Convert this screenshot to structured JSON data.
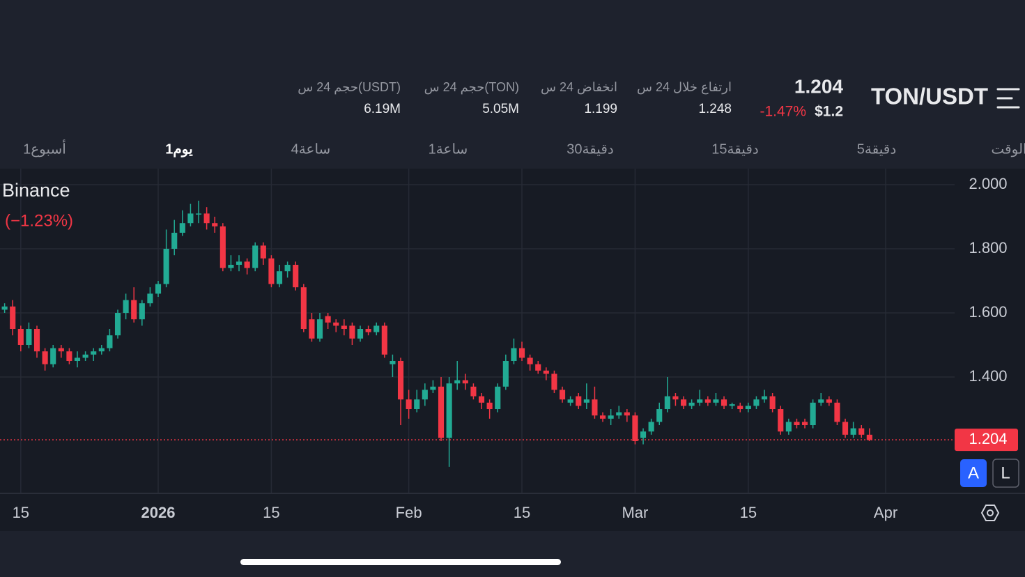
{
  "header": {
    "symbol": "TON/USDT",
    "price": "1.204",
    "change": "-1.47%",
    "usd_price": "$1.2",
    "stats": [
      {
        "label": "ارتفاع خلال 24 س",
        "value": "1.248"
      },
      {
        "label": "انخفاض 24 س",
        "value": "1.199"
      },
      {
        "label": "حجم 24 س(TON)",
        "value": "5.05M"
      },
      {
        "label": "حجم 24 س(USDT)",
        "value": "6.19M"
      }
    ]
  },
  "intervals": {
    "items": [
      "الوقت",
      "5دقيقة",
      "15دقيقة",
      "30دقيقة",
      "1ساعة",
      "4ساعة",
      "1يوم",
      "1أسبوع"
    ],
    "active": 6
  },
  "buttons": [
    "A",
    "L"
  ],
  "chart_data": {
    "type": "candlestick",
    "exchange": "Binance",
    "change_label": "(−1.23%)",
    "up_color": "#22ab94",
    "down_color": "#f23645",
    "grid": true,
    "x": [
      -19,
      -18,
      -17,
      -16,
      -15,
      -14,
      -13,
      -12,
      -11,
      -10,
      -9,
      -8,
      -7,
      -6,
      -5,
      -4,
      -3,
      -2,
      -1,
      0,
      1,
      2,
      3,
      4,
      5,
      6,
      7,
      8,
      9,
      10,
      11,
      12,
      13,
      14,
      15,
      16,
      17,
      18,
      19,
      20,
      21,
      22,
      23,
      24,
      25,
      26,
      27,
      28,
      29,
      30,
      31,
      32,
      33,
      34,
      35,
      36,
      37,
      38,
      39,
      40,
      41,
      42,
      43,
      44,
      45,
      46,
      47,
      48,
      49,
      50,
      51,
      52,
      53,
      54,
      55,
      56,
      57,
      58,
      59,
      60,
      61,
      62,
      63,
      64,
      65,
      66,
      67,
      68,
      69,
      70,
      71,
      72,
      73,
      74,
      75,
      76,
      77,
      78,
      79,
      80,
      81,
      82,
      83,
      84,
      85,
      86,
      87,
      88
    ],
    "open": [
      1.61,
      1.62,
      1.55,
      1.5,
      1.55,
      1.48,
      1.44,
      1.49,
      1.48,
      1.45,
      1.46,
      1.47,
      1.48,
      1.49,
      1.53,
      1.6,
      1.64,
      1.58,
      1.63,
      1.66,
      1.69,
      1.8,
      1.85,
      1.88,
      1.91,
      1.91,
      1.88,
      1.87,
      1.74,
      1.75,
      1.76,
      1.74,
      1.81,
      1.77,
      1.69,
      1.73,
      1.75,
      1.68,
      1.58,
      1.52,
      1.59,
      1.57,
      1.56,
      1.56,
      1.52,
      1.55,
      1.54,
      1.56,
      1.44,
      1.45,
      1.33,
      1.3,
      1.33,
      1.36,
      1.37,
      1.21,
      1.38,
      1.39,
      1.37,
      1.34,
      1.32,
      1.3,
      1.37,
      1.45,
      1.49,
      1.46,
      1.44,
      1.42,
      1.41,
      1.36,
      1.32,
      1.34,
      1.32,
      1.33,
      1.28,
      1.27,
      1.28,
      1.29,
      1.28,
      1.21,
      1.23,
      1.26,
      1.3,
      1.34,
      1.33,
      1.31,
      1.32,
      1.33,
      1.32,
      1.33,
      1.31,
      1.31,
      1.3,
      1.31,
      1.33,
      1.34,
      1.3,
      1.23,
      1.26,
      1.26,
      1.25,
      1.32,
      1.33,
      1.32,
      1.26,
      1.22,
      1.24,
      1.22
    ],
    "high": [
      1.63,
      1.64,
      1.56,
      1.57,
      1.56,
      1.49,
      1.5,
      1.5,
      1.49,
      1.48,
      1.48,
      1.49,
      1.5,
      1.55,
      1.61,
      1.66,
      1.68,
      1.64,
      1.68,
      1.7,
      1.86,
      1.89,
      1.92,
      1.94,
      1.95,
      1.93,
      1.9,
      1.88,
      1.78,
      1.78,
      1.77,
      1.82,
      1.82,
      1.78,
      1.75,
      1.76,
      1.76,
      1.69,
      1.6,
      1.6,
      1.6,
      1.58,
      1.58,
      1.57,
      1.56,
      1.56,
      1.57,
      1.57,
      1.47,
      1.46,
      1.36,
      1.36,
      1.38,
      1.39,
      1.4,
      1.4,
      1.45,
      1.41,
      1.38,
      1.35,
      1.33,
      1.38,
      1.47,
      1.52,
      1.51,
      1.47,
      1.45,
      1.43,
      1.42,
      1.37,
      1.34,
      1.35,
      1.38,
      1.37,
      1.29,
      1.3,
      1.31,
      1.3,
      1.29,
      1.24,
      1.27,
      1.32,
      1.4,
      1.35,
      1.34,
      1.33,
      1.36,
      1.34,
      1.35,
      1.34,
      1.32,
      1.32,
      1.32,
      1.34,
      1.36,
      1.35,
      1.31,
      1.27,
      1.27,
      1.27,
      1.33,
      1.35,
      1.34,
      1.33,
      1.27,
      1.26,
      1.25,
      1.24
    ],
    "low": [
      1.6,
      1.53,
      1.48,
      1.49,
      1.46,
      1.42,
      1.43,
      1.46,
      1.44,
      1.43,
      1.45,
      1.45,
      1.47,
      1.48,
      1.52,
      1.58,
      1.57,
      1.56,
      1.62,
      1.65,
      1.68,
      1.78,
      1.84,
      1.87,
      1.88,
      1.86,
      1.85,
      1.73,
      1.73,
      1.73,
      1.72,
      1.73,
      1.75,
      1.68,
      1.68,
      1.71,
      1.67,
      1.54,
      1.51,
      1.51,
      1.55,
      1.54,
      1.53,
      1.5,
      1.51,
      1.53,
      1.53,
      1.46,
      1.4,
      1.25,
      1.27,
      1.29,
      1.31,
      1.35,
      1.2,
      1.12,
      1.36,
      1.36,
      1.33,
      1.3,
      1.27,
      1.29,
      1.36,
      1.44,
      1.45,
      1.42,
      1.41,
      1.39,
      1.35,
      1.32,
      1.31,
      1.3,
      1.3,
      1.27,
      1.26,
      1.25,
      1.27,
      1.26,
      1.19,
      1.19,
      1.22,
      1.25,
      1.29,
      1.31,
      1.3,
      1.3,
      1.31,
      1.31,
      1.31,
      1.3,
      1.3,
      1.29,
      1.29,
      1.3,
      1.32,
      1.29,
      1.22,
      1.22,
      1.24,
      1.24,
      1.24,
      1.31,
      1.31,
      1.25,
      1.21,
      1.21,
      1.21,
      1.2
    ],
    "close": [
      1.62,
      1.55,
      1.5,
      1.55,
      1.48,
      1.44,
      1.49,
      1.48,
      1.45,
      1.46,
      1.47,
      1.48,
      1.49,
      1.53,
      1.6,
      1.64,
      1.58,
      1.63,
      1.66,
      1.69,
      1.8,
      1.85,
      1.88,
      1.91,
      1.91,
      1.88,
      1.87,
      1.74,
      1.75,
      1.76,
      1.74,
      1.81,
      1.77,
      1.69,
      1.73,
      1.75,
      1.68,
      1.55,
      1.52,
      1.58,
      1.57,
      1.56,
      1.55,
      1.52,
      1.55,
      1.54,
      1.56,
      1.47,
      1.45,
      1.33,
      1.3,
      1.33,
      1.36,
      1.37,
      1.21,
      1.38,
      1.39,
      1.38,
      1.34,
      1.32,
      1.3,
      1.37,
      1.45,
      1.49,
      1.46,
      1.44,
      1.42,
      1.41,
      1.36,
      1.33,
      1.33,
      1.31,
      1.33,
      1.28,
      1.27,
      1.28,
      1.29,
      1.28,
      1.2,
      1.23,
      1.26,
      1.3,
      1.34,
      1.33,
      1.31,
      1.32,
      1.33,
      1.32,
      1.33,
      1.31,
      1.315,
      1.3,
      1.31,
      1.33,
      1.34,
      1.3,
      1.23,
      1.26,
      1.25,
      1.25,
      1.32,
      1.33,
      1.32,
      1.26,
      1.22,
      1.24,
      1.22,
      1.204
    ],
    "last_price": 1.204,
    "xlim": [
      -19.57,
      98.53
    ],
    "xticks": [
      {
        "value": -17,
        "label": "15"
      },
      {
        "value": 0,
        "label": "2026"
      },
      {
        "value": 14,
        "label": "15"
      },
      {
        "value": 31,
        "label": "Feb"
      },
      {
        "value": 45,
        "label": "15"
      },
      {
        "value": 59,
        "label": "Mar"
      },
      {
        "value": 73,
        "label": "15"
      },
      {
        "value": 90,
        "label": "Apr"
      }
    ],
    "ylim": [
      1.037,
      2.05
    ],
    "yticks": [
      {
        "value": 2,
        "label": "2.000"
      },
      {
        "value": 1.8,
        "label": "1.800"
      },
      {
        "value": 1.6,
        "label": "1.600"
      },
      {
        "value": 1.4,
        "label": "1.400"
      }
    ]
  }
}
